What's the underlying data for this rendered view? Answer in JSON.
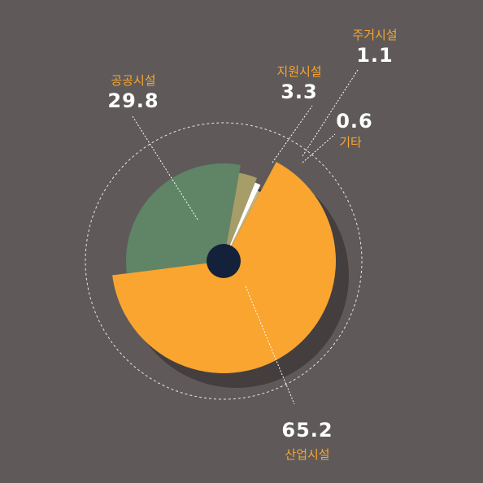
{
  "chart_data": {
    "type": "pie",
    "title": "",
    "categories": [
      "산업시설",
      "공공시설",
      "지원시설",
      "주거시설",
      "기타"
    ],
    "values": [
      65.2,
      29.8,
      3.3,
      1.1,
      0.6
    ],
    "value_labels": [
      "65.2",
      "29.8",
      "3.3",
      "1.1",
      "0.6"
    ],
    "colors": [
      "#f9a530",
      "#5f8566",
      "#a69d68",
      "#ffffff",
      "#c7b37a"
    ],
    "label_color": "#f9a530",
    "background": "#5f5a59",
    "legend": "none"
  }
}
